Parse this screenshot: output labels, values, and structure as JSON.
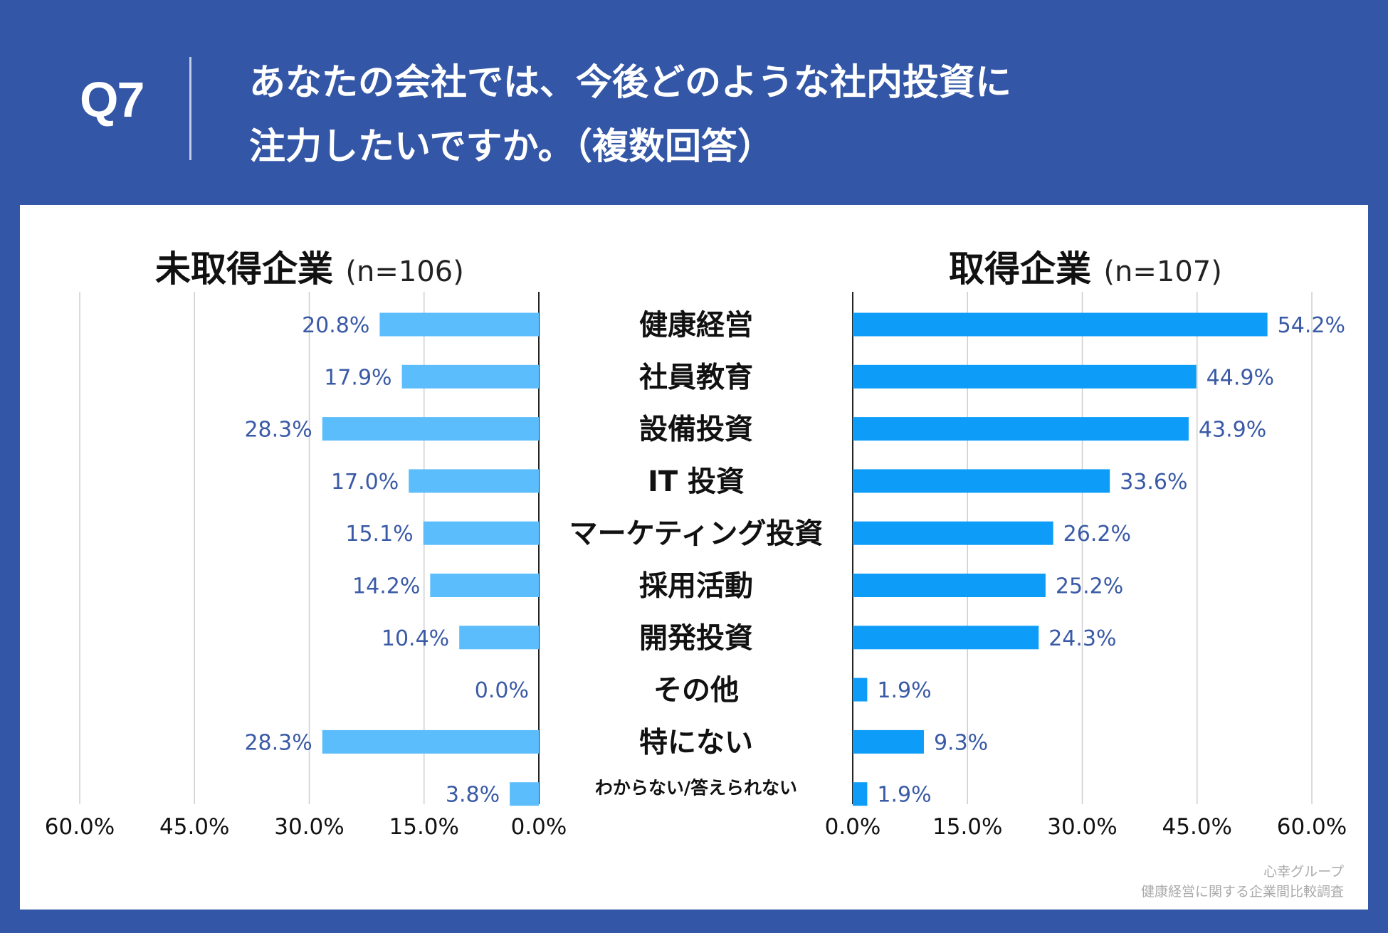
{
  "header": {
    "q_number": "Q7",
    "question_line1": "あなたの会社では、今後どのような社内投資に",
    "question_line2": "注力したいですか。（複数回答）"
  },
  "left_panel": {
    "title": "未取得企業",
    "n_label": "(n=106)"
  },
  "right_panel": {
    "title": "取得企業",
    "n_label": "(n=107)"
  },
  "footer": {
    "source": "心幸グループ",
    "survey": "健康経営に関する企業間比較調査"
  },
  "colors": {
    "header_bg": "#3356a6",
    "left_bar": "#5bbdfb",
    "right_bar": "#0d9cf7",
    "value_text": "#3a5aa6",
    "grid": "#cfcfcf"
  },
  "chart_data": {
    "type": "bar",
    "orientation": "horizontal-butterfly",
    "categories": [
      "健康経営",
      "社員教育",
      "設備投資",
      "IT 投資",
      "マーケティング投資",
      "採用活動",
      "開発投資",
      "その他",
      "特にない",
      "わからない/答えられない"
    ],
    "series": [
      {
        "name": "未取得企業 (n=106)",
        "values": [
          20.8,
          17.9,
          28.3,
          17.0,
          15.1,
          14.2,
          10.4,
          0.0,
          28.3,
          3.8
        ],
        "labels": [
          "20.8%",
          "17.9%",
          "28.3%",
          "17.0%",
          "15.1%",
          "14.2%",
          "10.4%",
          "0.0%",
          "28.3%",
          "3.8%"
        ]
      },
      {
        "name": "取得企業 (n=107)",
        "values": [
          54.2,
          44.9,
          43.9,
          33.6,
          26.2,
          25.2,
          24.3,
          1.9,
          9.3,
          1.9
        ],
        "labels": [
          "54.2%",
          "44.9%",
          "43.9%",
          "33.6%",
          "26.2%",
          "25.2%",
          "24.3%",
          "1.9%",
          "9.3%",
          "1.9%"
        ]
      }
    ],
    "xlim": [
      0,
      60
    ],
    "ticks": [
      0,
      15,
      30,
      45,
      60
    ],
    "left_tick_labels": [
      "60.0%",
      "45.0%",
      "30.0%",
      "15.0%",
      "0.0%"
    ],
    "right_tick_labels": [
      "0.0%",
      "15.0%",
      "30.0%",
      "45.0%",
      "60.0%"
    ],
    "grid": true
  }
}
